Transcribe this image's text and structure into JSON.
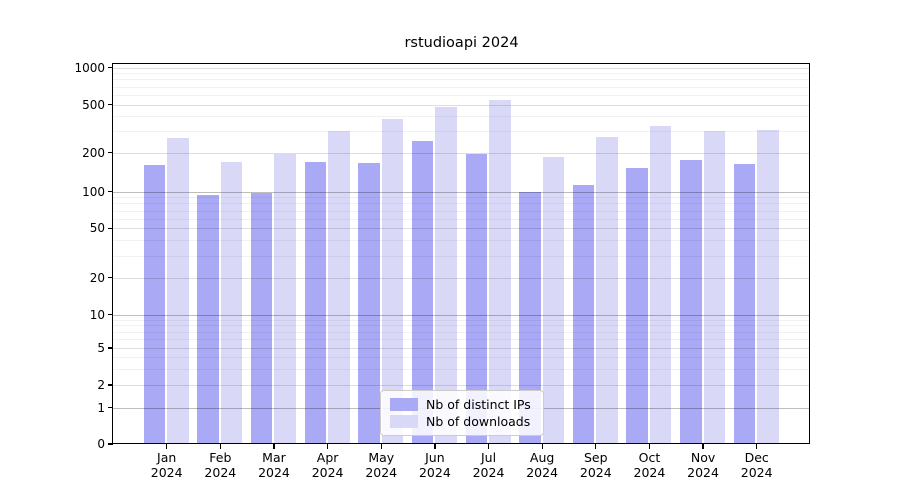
{
  "chart_data": {
    "type": "bar",
    "title": "rstudioapi 2024",
    "categories": [
      "Jan",
      "Feb",
      "Mar",
      "Apr",
      "May",
      "Jun",
      "Jul",
      "Aug",
      "Sep",
      "Oct",
      "Nov",
      "Dec"
    ],
    "category_year": "2024",
    "series": [
      {
        "name": "Nb of distinct IPs",
        "color": "#a9a9f5",
        "values": [
          160,
          94,
          97,
          168,
          165,
          250,
          196,
          100,
          112,
          152,
          176,
          162
        ]
      },
      {
        "name": "Nb of downloads",
        "color": "#d9d9f7",
        "values": [
          265,
          170,
          196,
          300,
          380,
          480,
          540,
          185,
          270,
          330,
          300,
          310
        ]
      }
    ],
    "y_ticks": [
      0,
      1,
      2,
      5,
      10,
      20,
      50,
      100,
      200,
      500,
      1000
    ],
    "y_tick_labels": [
      "0",
      "1",
      "2",
      "5",
      "10",
      "20",
      "50",
      "100",
      "200",
      "500",
      "1000"
    ],
    "y_scale": "symlog",
    "ylim": [
      0,
      1000
    ],
    "xlabel": "",
    "ylabel": "",
    "grid": true,
    "legend_position": "bottom-center",
    "colors": {
      "background": "#ffffff",
      "axis": "#000000",
      "grid_major": "#bfbfbf",
      "grid_minor": "#f0f0f0"
    }
  },
  "legend": {
    "items": [
      {
        "label": "Nb of distinct IPs"
      },
      {
        "label": "Nb of downloads"
      }
    ]
  }
}
